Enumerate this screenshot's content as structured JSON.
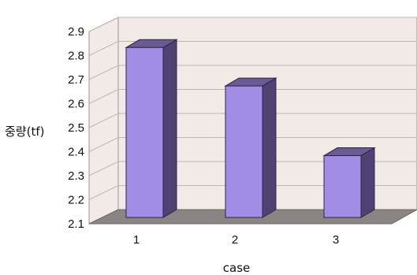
{
  "chart_data": {
    "type": "bar",
    "title": "",
    "xlabel": "case",
    "ylabel": "중량(tf)",
    "categories": [
      "1",
      "2",
      "3"
    ],
    "values": [
      2.86,
      2.7,
      2.41
    ],
    "ylim": [
      2.1,
      2.9
    ],
    "yticks": [
      "2.1",
      "2.2",
      "2.3",
      "2.4",
      "2.5",
      "2.6",
      "2.7",
      "2.8",
      "2.9"
    ],
    "grid": true,
    "legend": "none",
    "colors": {
      "bar_front": "#a18ce6",
      "bar_top": "#6a5b94",
      "bar_side": "#4f4272",
      "wall": "#f1eae6",
      "floor": "#8a8482",
      "gridline": "#bdb6b3"
    }
  }
}
